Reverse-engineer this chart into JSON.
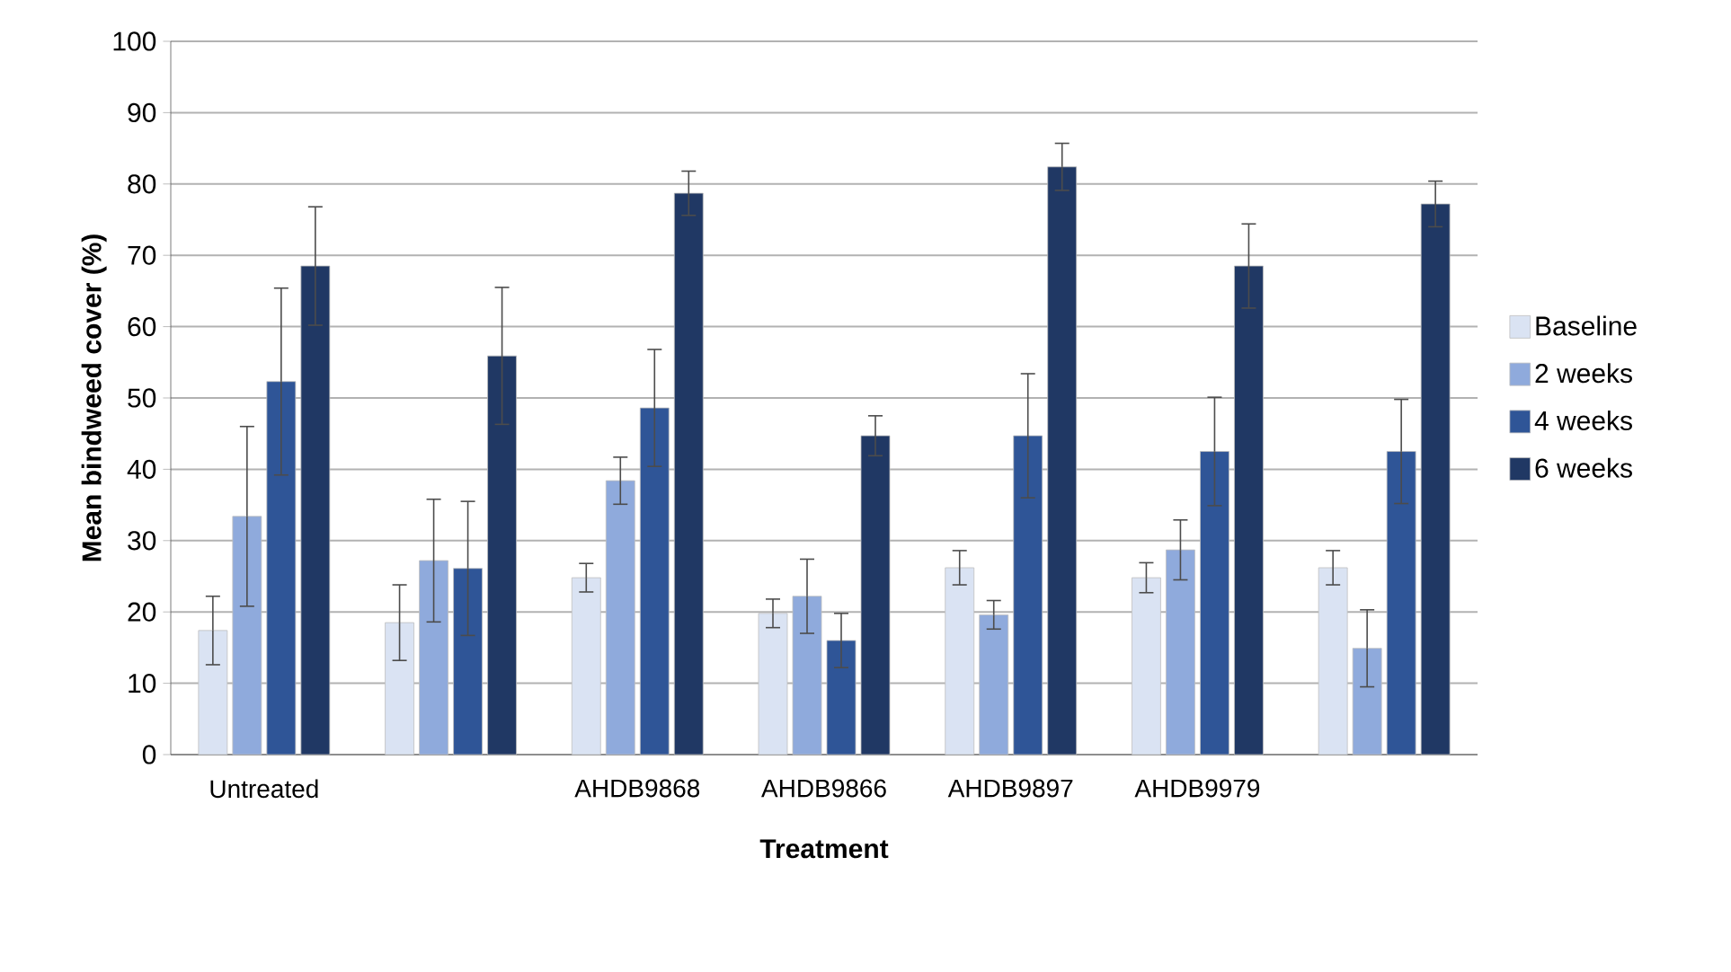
{
  "chart_data": {
    "type": "bar",
    "xlabel": "Treatment",
    "ylabel": "Mean bindweed cover (%)",
    "categories": [
      "Untreated",
      null,
      "AHDB9868",
      "AHDB9866",
      "AHDB9897",
      "AHDB9979",
      null
    ],
    "series": [
      {
        "name": "Baseline",
        "color": "#dae3f3",
        "values": [
          17.4,
          18.5,
          24.8,
          19.8,
          26.2,
          24.8,
          26.2
        ],
        "errors": [
          4.8,
          5.3,
          2.0,
          2.0,
          2.4,
          2.1,
          2.4
        ]
      },
      {
        "name": "2 weeks",
        "color": "#8faadc",
        "values": [
          33.4,
          27.2,
          38.4,
          22.2,
          19.6,
          28.7,
          14.9
        ],
        "errors": [
          12.6,
          8.6,
          3.3,
          5.2,
          2.0,
          4.2,
          5.4
        ]
      },
      {
        "name": "4 weeks",
        "color": "#2f5597",
        "values": [
          52.3,
          26.1,
          48.6,
          16.0,
          44.7,
          42.5,
          42.5
        ],
        "errors": [
          13.1,
          9.4,
          8.2,
          3.8,
          8.7,
          7.6,
          7.3
        ]
      },
      {
        "name": "6 weeks",
        "color": "#203864",
        "values": [
          68.5,
          55.9,
          78.7,
          44.7,
          82.4,
          68.5,
          77.2
        ],
        "errors": [
          8.3,
          9.6,
          3.1,
          2.8,
          3.3,
          5.9,
          3.2
        ]
      }
    ],
    "ylim": [
      0,
      100
    ],
    "yticks": [
      0,
      10,
      20,
      30,
      40,
      50,
      60,
      70,
      80,
      90,
      100
    ],
    "grid": "y",
    "legend": "right"
  }
}
